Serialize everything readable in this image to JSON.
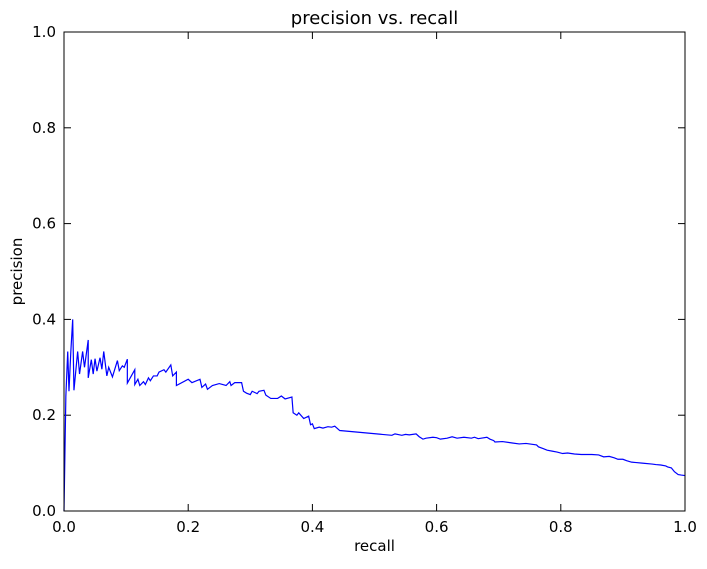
{
  "chart_data": {
    "type": "line",
    "title": "precision vs. recall",
    "xlabel": "recall",
    "ylabel": "precision",
    "xlim": [
      0.0,
      1.0
    ],
    "ylim": [
      0.0,
      1.0
    ],
    "grid": false,
    "x_ticks": [
      0.0,
      0.2,
      0.4,
      0.6,
      0.8,
      1.0
    ],
    "y_ticks": [
      0.0,
      0.2,
      0.4,
      0.6,
      0.8,
      1.0
    ],
    "x_tick_labels": [
      "0.0",
      "0.2",
      "0.4",
      "0.6",
      "0.8",
      "1.0"
    ],
    "y_tick_labels": [
      "0.0",
      "0.2",
      "0.4",
      "0.6",
      "0.8",
      "1.0"
    ],
    "line_color": "#0000ff",
    "series": [
      {
        "points": [
          [
            0.0,
            0.0
          ],
          [
            0.003,
            0.24
          ],
          [
            0.006,
            0.333
          ],
          [
            0.008,
            0.25
          ],
          [
            0.011,
            0.333
          ],
          [
            0.014,
            0.4
          ],
          [
            0.016,
            0.252
          ],
          [
            0.022,
            0.333
          ],
          [
            0.025,
            0.286
          ],
          [
            0.03,
            0.333
          ],
          [
            0.033,
            0.3
          ],
          [
            0.039,
            0.357
          ],
          [
            0.039,
            0.278
          ],
          [
            0.044,
            0.316
          ],
          [
            0.047,
            0.286
          ],
          [
            0.05,
            0.318
          ],
          [
            0.053,
            0.292
          ],
          [
            0.058,
            0.32
          ],
          [
            0.061,
            0.296
          ],
          [
            0.064,
            0.333
          ],
          [
            0.069,
            0.282
          ],
          [
            0.072,
            0.3
          ],
          [
            0.078,
            0.28
          ],
          [
            0.086,
            0.314
          ],
          [
            0.089,
            0.293
          ],
          [
            0.094,
            0.303
          ],
          [
            0.097,
            0.3
          ],
          [
            0.102,
            0.317
          ],
          [
            0.102,
            0.267
          ],
          [
            0.114,
            0.295
          ],
          [
            0.114,
            0.264
          ],
          [
            0.119,
            0.275
          ],
          [
            0.122,
            0.262
          ],
          [
            0.128,
            0.27
          ],
          [
            0.131,
            0.264
          ],
          [
            0.136,
            0.278
          ],
          [
            0.139,
            0.272
          ],
          [
            0.144,
            0.282
          ],
          [
            0.15,
            0.282
          ],
          [
            0.153,
            0.29
          ],
          [
            0.161,
            0.295
          ],
          [
            0.164,
            0.29
          ],
          [
            0.172,
            0.305
          ],
          [
            0.175,
            0.282
          ],
          [
            0.181,
            0.29
          ],
          [
            0.181,
            0.262
          ],
          [
            0.2,
            0.275
          ],
          [
            0.206,
            0.268
          ],
          [
            0.219,
            0.275
          ],
          [
            0.222,
            0.258
          ],
          [
            0.228,
            0.265
          ],
          [
            0.231,
            0.254
          ],
          [
            0.239,
            0.262
          ],
          [
            0.25,
            0.266
          ],
          [
            0.261,
            0.262
          ],
          [
            0.267,
            0.27
          ],
          [
            0.269,
            0.262
          ],
          [
            0.275,
            0.268
          ],
          [
            0.286,
            0.268
          ],
          [
            0.289,
            0.25
          ],
          [
            0.294,
            0.246
          ],
          [
            0.3,
            0.243
          ],
          [
            0.303,
            0.25
          ],
          [
            0.311,
            0.245
          ],
          [
            0.314,
            0.25
          ],
          [
            0.322,
            0.252
          ],
          [
            0.325,
            0.242
          ],
          [
            0.333,
            0.235
          ],
          [
            0.344,
            0.235
          ],
          [
            0.35,
            0.24
          ],
          [
            0.356,
            0.234
          ],
          [
            0.367,
            0.238
          ],
          [
            0.369,
            0.205
          ],
          [
            0.375,
            0.2
          ],
          [
            0.378,
            0.205
          ],
          [
            0.386,
            0.193
          ],
          [
            0.394,
            0.198
          ],
          [
            0.397,
            0.18
          ],
          [
            0.4,
            0.182
          ],
          [
            0.403,
            0.172
          ],
          [
            0.411,
            0.175
          ],
          [
            0.417,
            0.173
          ],
          [
            0.425,
            0.176
          ],
          [
            0.431,
            0.175
          ],
          [
            0.436,
            0.177
          ],
          [
            0.444,
            0.168
          ],
          [
            0.528,
            0.158
          ],
          [
            0.533,
            0.161
          ],
          [
            0.544,
            0.158
          ],
          [
            0.55,
            0.16
          ],
          [
            0.556,
            0.159
          ],
          [
            0.567,
            0.161
          ],
          [
            0.572,
            0.155
          ],
          [
            0.578,
            0.15
          ],
          [
            0.583,
            0.152
          ],
          [
            0.594,
            0.154
          ],
          [
            0.6,
            0.153
          ],
          [
            0.606,
            0.15
          ],
          [
            0.617,
            0.152
          ],
          [
            0.625,
            0.155
          ],
          [
            0.633,
            0.152
          ],
          [
            0.644,
            0.154
          ],
          [
            0.656,
            0.152
          ],
          [
            0.661,
            0.154
          ],
          [
            0.667,
            0.151
          ],
          [
            0.681,
            0.154
          ],
          [
            0.686,
            0.15
          ],
          [
            0.692,
            0.147
          ],
          [
            0.694,
            0.144
          ],
          [
            0.706,
            0.145
          ],
          [
            0.722,
            0.142
          ],
          [
            0.733,
            0.14
          ],
          [
            0.744,
            0.141
          ],
          [
            0.761,
            0.138
          ],
          [
            0.764,
            0.134
          ],
          [
            0.772,
            0.13
          ],
          [
            0.778,
            0.127
          ],
          [
            0.786,
            0.125
          ],
          [
            0.794,
            0.123
          ],
          [
            0.803,
            0.12
          ],
          [
            0.811,
            0.121
          ],
          [
            0.822,
            0.119
          ],
          [
            0.833,
            0.118
          ],
          [
            0.85,
            0.118
          ],
          [
            0.861,
            0.117
          ],
          [
            0.869,
            0.113
          ],
          [
            0.878,
            0.114
          ],
          [
            0.886,
            0.111
          ],
          [
            0.892,
            0.108
          ],
          [
            0.9,
            0.108
          ],
          [
            0.906,
            0.105
          ],
          [
            0.914,
            0.102
          ],
          [
            0.931,
            0.1
          ],
          [
            0.947,
            0.098
          ],
          [
            0.953,
            0.097
          ],
          [
            0.961,
            0.096
          ],
          [
            0.969,
            0.094
          ],
          [
            0.972,
            0.092
          ],
          [
            0.978,
            0.09
          ],
          [
            0.983,
            0.082
          ],
          [
            0.989,
            0.076
          ],
          [
            0.994,
            0.075
          ],
          [
            1.0,
            0.074
          ]
        ]
      }
    ]
  }
}
